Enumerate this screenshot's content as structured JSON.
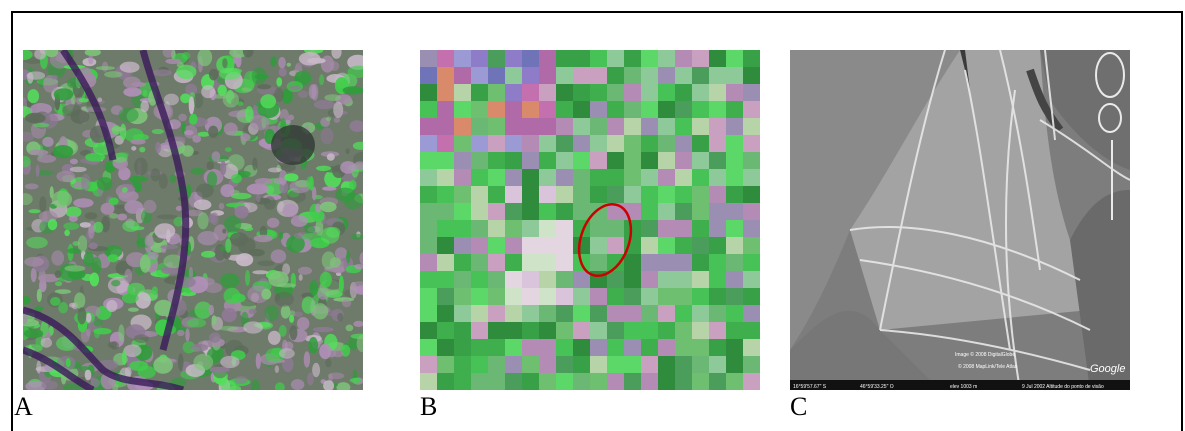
{
  "panels": [
    {
      "label": "A"
    },
    {
      "label": "B"
    },
    {
      "label": "C"
    }
  ],
  "imagery_c": {
    "credit_1": "Image © 2008 DigitalGlobe",
    "credit_2": "© 2008 MapLink/Tele Atlas",
    "brand": "Google",
    "coord_lat": "16°59'57.67\" S",
    "coord_lon": "46°59'33.25\" O",
    "elev": "elev 1003 m",
    "date_alt": "9 Jul 2002   Altitude do ponto de visão"
  },
  "colors": {
    "vegetation": "#3fcf4a",
    "soil": "#a58aa8",
    "river": "#3a1a5a",
    "marker": "#cc0000"
  }
}
